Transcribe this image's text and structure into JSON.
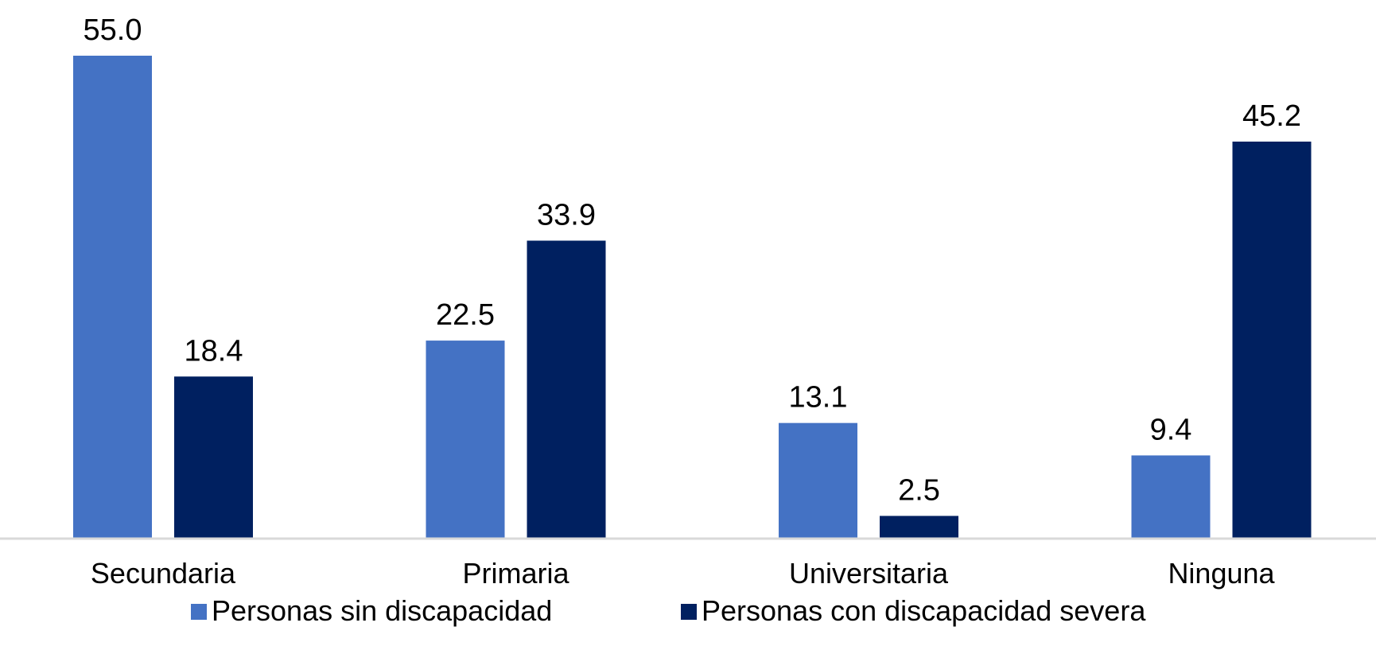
{
  "chart_data": {
    "type": "bar",
    "title": "",
    "xlabel": "",
    "ylabel": "",
    "categories": [
      "Secundaria",
      "Primaria",
      "Universitaria",
      "Ninguna"
    ],
    "series": [
      {
        "name": "Personas sin discapacidad",
        "color": "#4472C4",
        "values": [
          55.0,
          22.5,
          13.1,
          9.4
        ]
      },
      {
        "name": "Personas con discapacidad severa",
        "color": "#002060",
        "values": [
          18.4,
          33.9,
          2.5,
          45.2
        ]
      }
    ],
    "data_labels": [
      [
        "55.0",
        "22.5",
        "13.1",
        "9.4"
      ],
      [
        "18.4",
        "33.9",
        "2.5",
        "45.2"
      ]
    ],
    "ylim": [
      0,
      55
    ],
    "grid": false,
    "legend_position": "bottom",
    "axis_color": "#D9D9D9"
  }
}
